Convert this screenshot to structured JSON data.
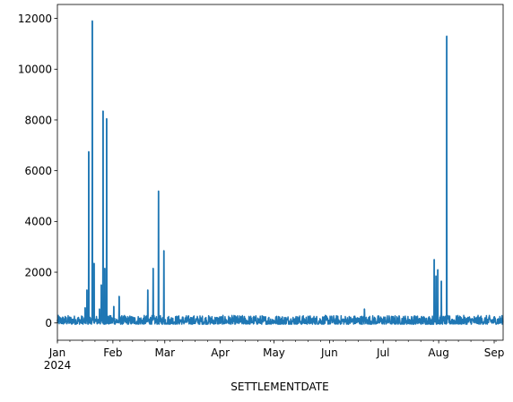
{
  "chart_data": {
    "type": "line",
    "xlabel": "SETTLEMENTDATE",
    "ylabel": "",
    "title": "",
    "color": "#1f77b4",
    "x_range": [
      "2024-01-01",
      "2024-09-06"
    ],
    "ylim": [
      -680,
      12550
    ],
    "y_ticks": [
      0,
      2000,
      4000,
      6000,
      8000,
      10000,
      12000
    ],
    "y_tick_labels": [
      "0",
      "2000",
      "4000",
      "6000",
      "8000",
      "10000",
      "12000"
    ],
    "x_ticks": [
      {
        "date": "2024-01-01",
        "label": "Jan",
        "sublabel": "2024"
      },
      {
        "date": "2024-02-01",
        "label": "Feb"
      },
      {
        "date": "2024-03-01",
        "label": "Mar"
      },
      {
        "date": "2024-04-01",
        "label": "Apr"
      },
      {
        "date": "2024-05-01",
        "label": "May"
      },
      {
        "date": "2024-06-01",
        "label": "Jun"
      },
      {
        "date": "2024-07-01",
        "label": "Jul"
      },
      {
        "date": "2024-08-01",
        "label": "Aug"
      },
      {
        "date": "2024-09-01",
        "label": "Sep"
      }
    ],
    "series": [
      {
        "baseline_range": [
          -50,
          300
        ],
        "spikes": [
          {
            "date": "2024-01-16",
            "value": 600
          },
          {
            "date": "2024-01-17",
            "value": 1300
          },
          {
            "date": "2024-01-18",
            "value": 6750
          },
          {
            "date": "2024-01-20",
            "value": 11900
          },
          {
            "date": "2024-01-21",
            "value": 2350
          },
          {
            "date": "2024-01-24",
            "value": 550
          },
          {
            "date": "2024-01-25",
            "value": 1500
          },
          {
            "date": "2024-01-26",
            "value": 8350
          },
          {
            "date": "2024-01-27",
            "value": 2150
          },
          {
            "date": "2024-01-28",
            "value": 8050
          },
          {
            "date": "2024-02-01",
            "value": 650
          },
          {
            "date": "2024-02-04",
            "value": 1050
          },
          {
            "date": "2024-02-20",
            "value": 1300
          },
          {
            "date": "2024-02-23",
            "value": 2150
          },
          {
            "date": "2024-02-26",
            "value": 5200
          },
          {
            "date": "2024-02-29",
            "value": 2850
          },
          {
            "date": "2024-06-20",
            "value": 550
          },
          {
            "date": "2024-07-29",
            "value": 2500
          },
          {
            "date": "2024-07-30",
            "value": 1850
          },
          {
            "date": "2024-07-31",
            "value": 2100
          },
          {
            "date": "2024-08-02",
            "value": 1650
          },
          {
            "date": "2024-08-05",
            "value": 11300
          }
        ]
      }
    ]
  }
}
